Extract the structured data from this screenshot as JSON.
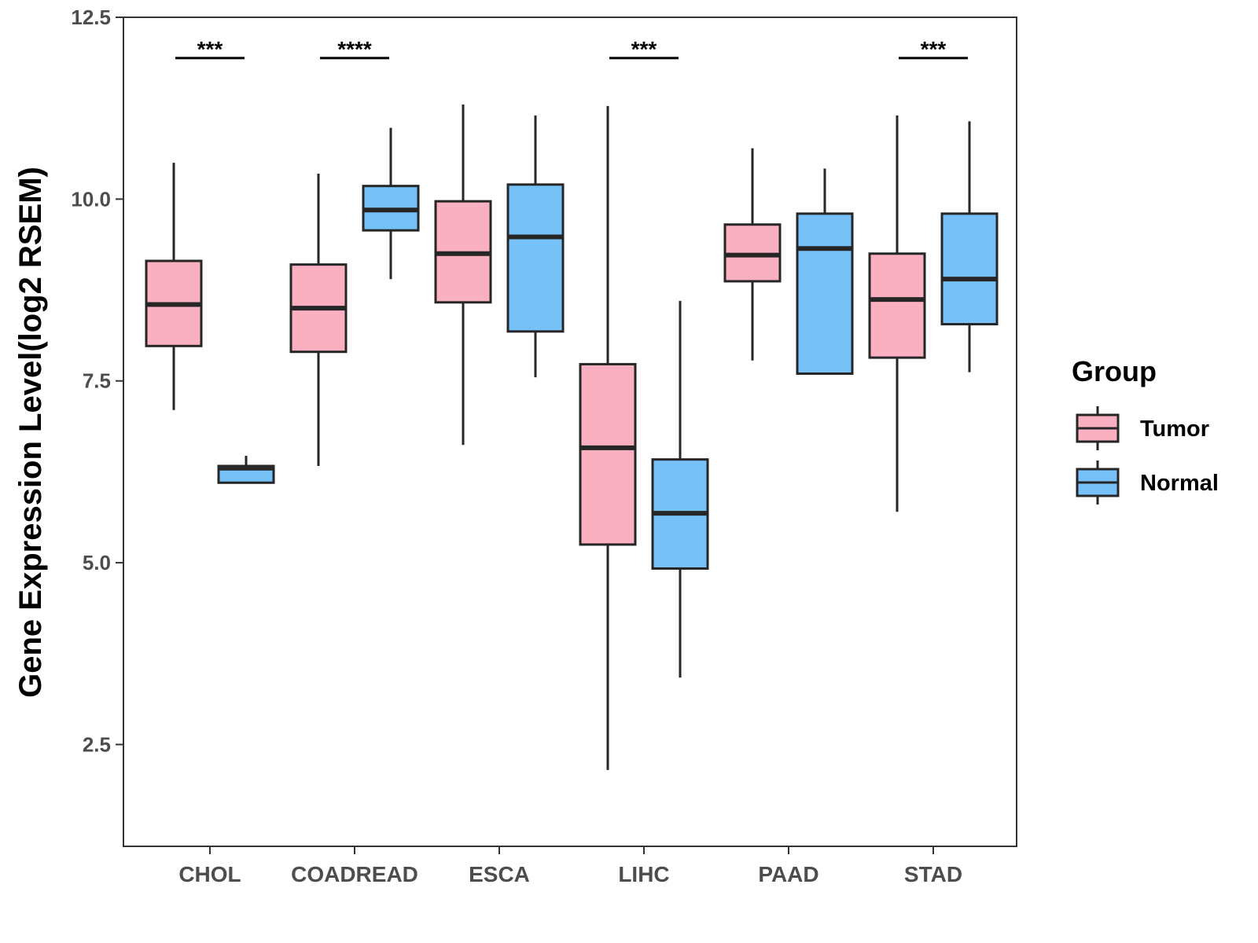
{
  "chart_data": {
    "type": "boxplot",
    "title": "",
    "xlabel": "",
    "ylabel": "Gene Expression Level(log2 RSEM)",
    "ylim": [
      1.1,
      12.5
    ],
    "yticks": [
      {
        "value": 2.5,
        "label": "2.5"
      },
      {
        "value": 5.0,
        "label": "5.0"
      },
      {
        "value": 7.5,
        "label": "7.5"
      },
      {
        "value": 10.0,
        "label": "10.0"
      },
      {
        "value": 12.5,
        "label": "12.5"
      }
    ],
    "categories": [
      "CHOL",
      "COADREAD",
      "ESCA",
      "LIHC",
      "PAAD",
      "STAD"
    ],
    "legend": {
      "title": "Group",
      "position": "right",
      "entries": [
        {
          "name": "Tumor",
          "color": "#fbb0c2"
        },
        {
          "name": "Normal",
          "color": "#76c1f8"
        }
      ]
    },
    "series": [
      {
        "name": "Tumor",
        "color": "#fbb0c2",
        "boxes": [
          {
            "category": "CHOL",
            "min": 7.1,
            "q1": 7.98,
            "median": 8.55,
            "q3": 9.15,
            "max": 10.5
          },
          {
            "category": "COADREAD",
            "min": 6.33,
            "q1": 7.9,
            "median": 8.5,
            "q3": 9.1,
            "max": 10.35
          },
          {
            "category": "ESCA",
            "min": 6.62,
            "q1": 8.58,
            "median": 9.25,
            "q3": 9.97,
            "max": 11.3
          },
          {
            "category": "LIHC",
            "min": 2.15,
            "q1": 5.25,
            "median": 6.58,
            "q3": 7.73,
            "max": 11.28
          },
          {
            "category": "PAAD",
            "min": 7.78,
            "q1": 8.87,
            "median": 9.23,
            "q3": 9.65,
            "max": 10.7
          },
          {
            "category": "STAD",
            "min": 5.7,
            "q1": 7.82,
            "median": 8.62,
            "q3": 9.25,
            "max": 11.15
          }
        ]
      },
      {
        "name": "Normal",
        "color": "#76c1f8",
        "boxes": [
          {
            "category": "CHOL",
            "min": 6.1,
            "q1": 6.1,
            "median": 6.3,
            "q3": 6.33,
            "max": 6.47
          },
          {
            "category": "COADREAD",
            "min": 8.9,
            "q1": 9.57,
            "median": 9.85,
            "q3": 10.18,
            "max": 10.98
          },
          {
            "category": "ESCA",
            "min": 7.55,
            "q1": 8.18,
            "median": 9.48,
            "q3": 10.2,
            "max": 11.15
          },
          {
            "category": "LIHC",
            "min": 3.42,
            "q1": 4.92,
            "median": 5.68,
            "q3": 6.42,
            "max": 8.6
          },
          {
            "category": "PAAD",
            "min": 7.6,
            "q1": 7.6,
            "median": 9.32,
            "q3": 9.8,
            "max": 10.42
          },
          {
            "category": "STAD",
            "min": 7.62,
            "q1": 8.28,
            "median": 8.9,
            "q3": 9.8,
            "max": 11.07
          }
        ]
      }
    ],
    "annotations": [
      {
        "category": "CHOL",
        "label": "***",
        "y": 11.94
      },
      {
        "category": "COADREAD",
        "label": "****",
        "y": 11.94
      },
      {
        "category": "LIHC",
        "label": "***",
        "y": 11.94
      },
      {
        "category": "STAD",
        "label": "***",
        "y": 11.94
      }
    ]
  }
}
